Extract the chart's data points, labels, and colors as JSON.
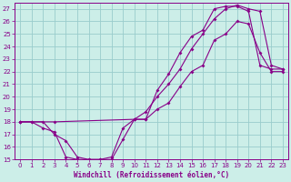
{
  "xlabel": "Windchill (Refroidissement éolien,°C)",
  "bg_color": "#cceee8",
  "line_color": "#880088",
  "grid_color": "#99cccc",
  "xlim": [
    -0.5,
    23.5
  ],
  "ylim": [
    15,
    27.5
  ],
  "xticks": [
    0,
    1,
    2,
    3,
    4,
    5,
    6,
    7,
    8,
    9,
    10,
    11,
    12,
    13,
    14,
    15,
    16,
    17,
    18,
    19,
    20,
    21,
    22,
    23
  ],
  "yticks": [
    15,
    16,
    17,
    18,
    19,
    20,
    21,
    22,
    23,
    24,
    25,
    26,
    27
  ],
  "series1_x": [
    0,
    1,
    2,
    3,
    4,
    5,
    6,
    7,
    8,
    9,
    10,
    11,
    12,
    13,
    14,
    15,
    16,
    17,
    18,
    19,
    20,
    21,
    22,
    23
  ],
  "series1_y": [
    18,
    18,
    18,
    17,
    16.5,
    15.2,
    15.0,
    15.0,
    15.0,
    16.6,
    18.2,
    18.2,
    19.0,
    19.5,
    20.8,
    22.0,
    22.5,
    24.5,
    25.0,
    26.0,
    25.8,
    23.5,
    22.0,
    22.0
  ],
  "series2_x": [
    0,
    1,
    2,
    3,
    4,
    5,
    6,
    7,
    8,
    9,
    10,
    11,
    12,
    13,
    14,
    15,
    16,
    17,
    18,
    19,
    20,
    21,
    22,
    23
  ],
  "series2_y": [
    18,
    18,
    17.5,
    17.2,
    15.2,
    15.0,
    15.0,
    15.0,
    15.2,
    17.5,
    18.2,
    18.2,
    20.5,
    21.8,
    23.5,
    24.8,
    25.3,
    27.0,
    27.2,
    27.2,
    26.8,
    22.5,
    22.2,
    22.2
  ],
  "series3_x": [
    0,
    3,
    10,
    11,
    12,
    13,
    14,
    15,
    16,
    17,
    18,
    19,
    20,
    21,
    22,
    23
  ],
  "series3_y": [
    18,
    18,
    18.2,
    18.8,
    20.0,
    21.0,
    22.2,
    23.8,
    25.0,
    26.2,
    27.0,
    27.3,
    27.0,
    26.8,
    22.5,
    22.2
  ]
}
